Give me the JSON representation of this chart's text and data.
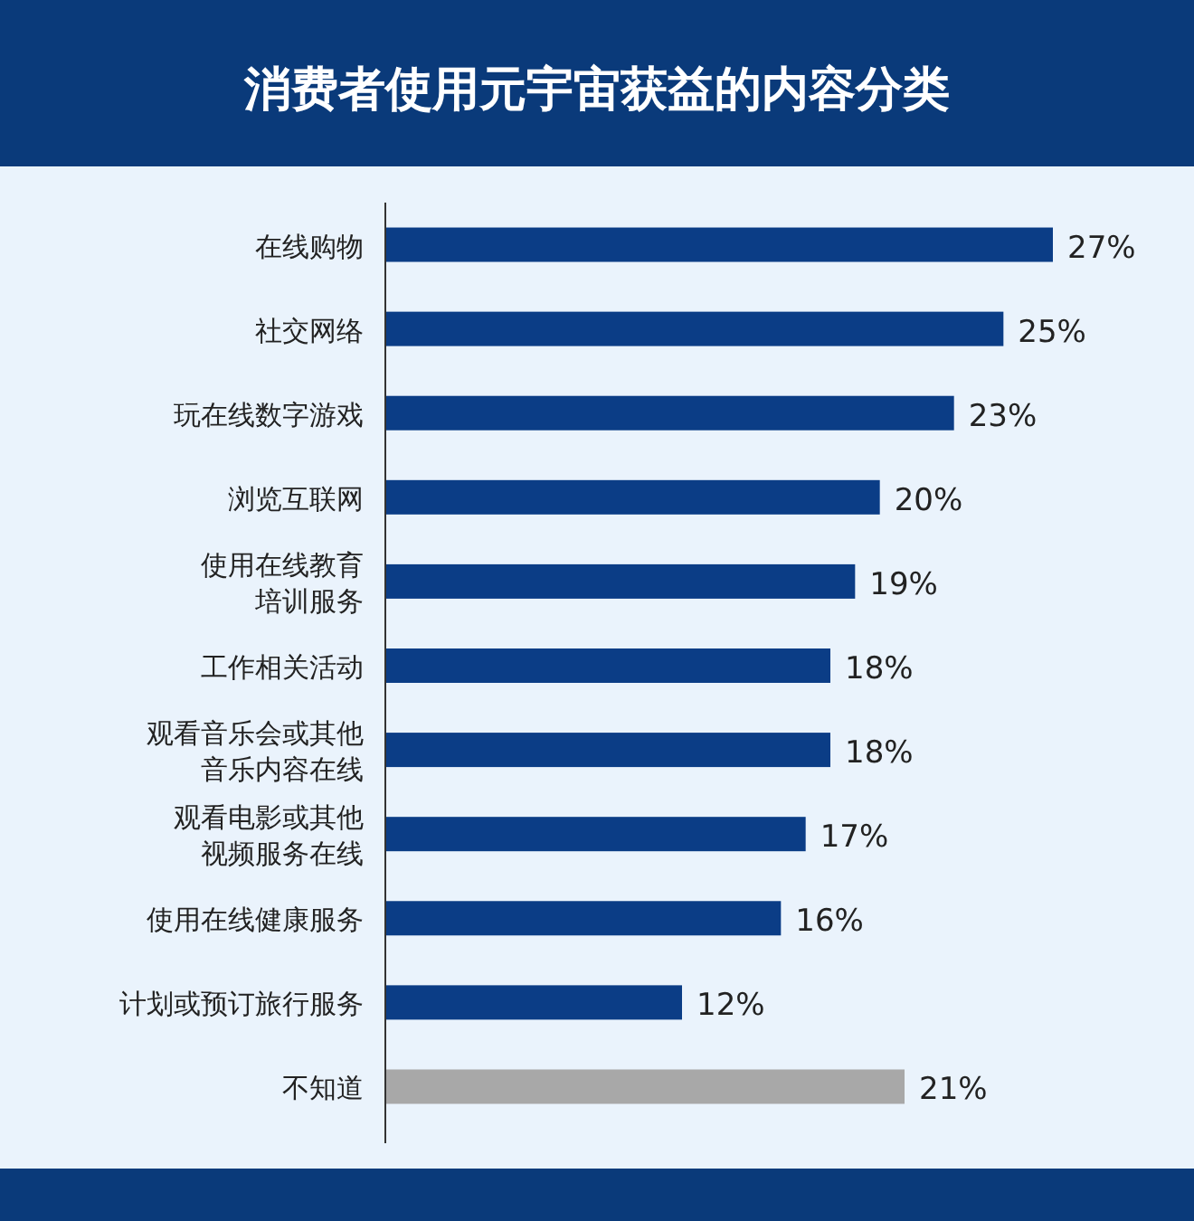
{
  "chart_data": {
    "type": "bar",
    "orientation": "horizontal",
    "title": "消费者使用元宇宙获益的内容分类",
    "categories": [
      "在线购物",
      "社交网络",
      "玩在线数字游戏",
      "浏览互联网",
      "使用在线教育培训服务",
      "工作相关活动",
      "观看音乐会或其他音乐内容在线",
      "观看电影或其他视频服务在线",
      "使用在线健康服务",
      "计划或预订旅行服务",
      "不知道"
    ],
    "values": [
      27,
      25,
      23,
      20,
      19,
      18,
      18,
      17,
      16,
      12,
      21
    ],
    "colors": [
      "#0b3d86",
      "#0b3d86",
      "#0b3d86",
      "#0b3d86",
      "#0b3d86",
      "#0b3d86",
      "#0b3d86",
      "#0b3d86",
      "#0b3d86",
      "#0b3d86",
      "#a8a8a8"
    ],
    "value_labels": [
      "27%",
      "25%",
      "23%",
      "20%",
      "19%",
      "18%",
      "18%",
      "17%",
      "16%",
      "12%",
      "21%"
    ],
    "tick_labels": "y"
  }
}
